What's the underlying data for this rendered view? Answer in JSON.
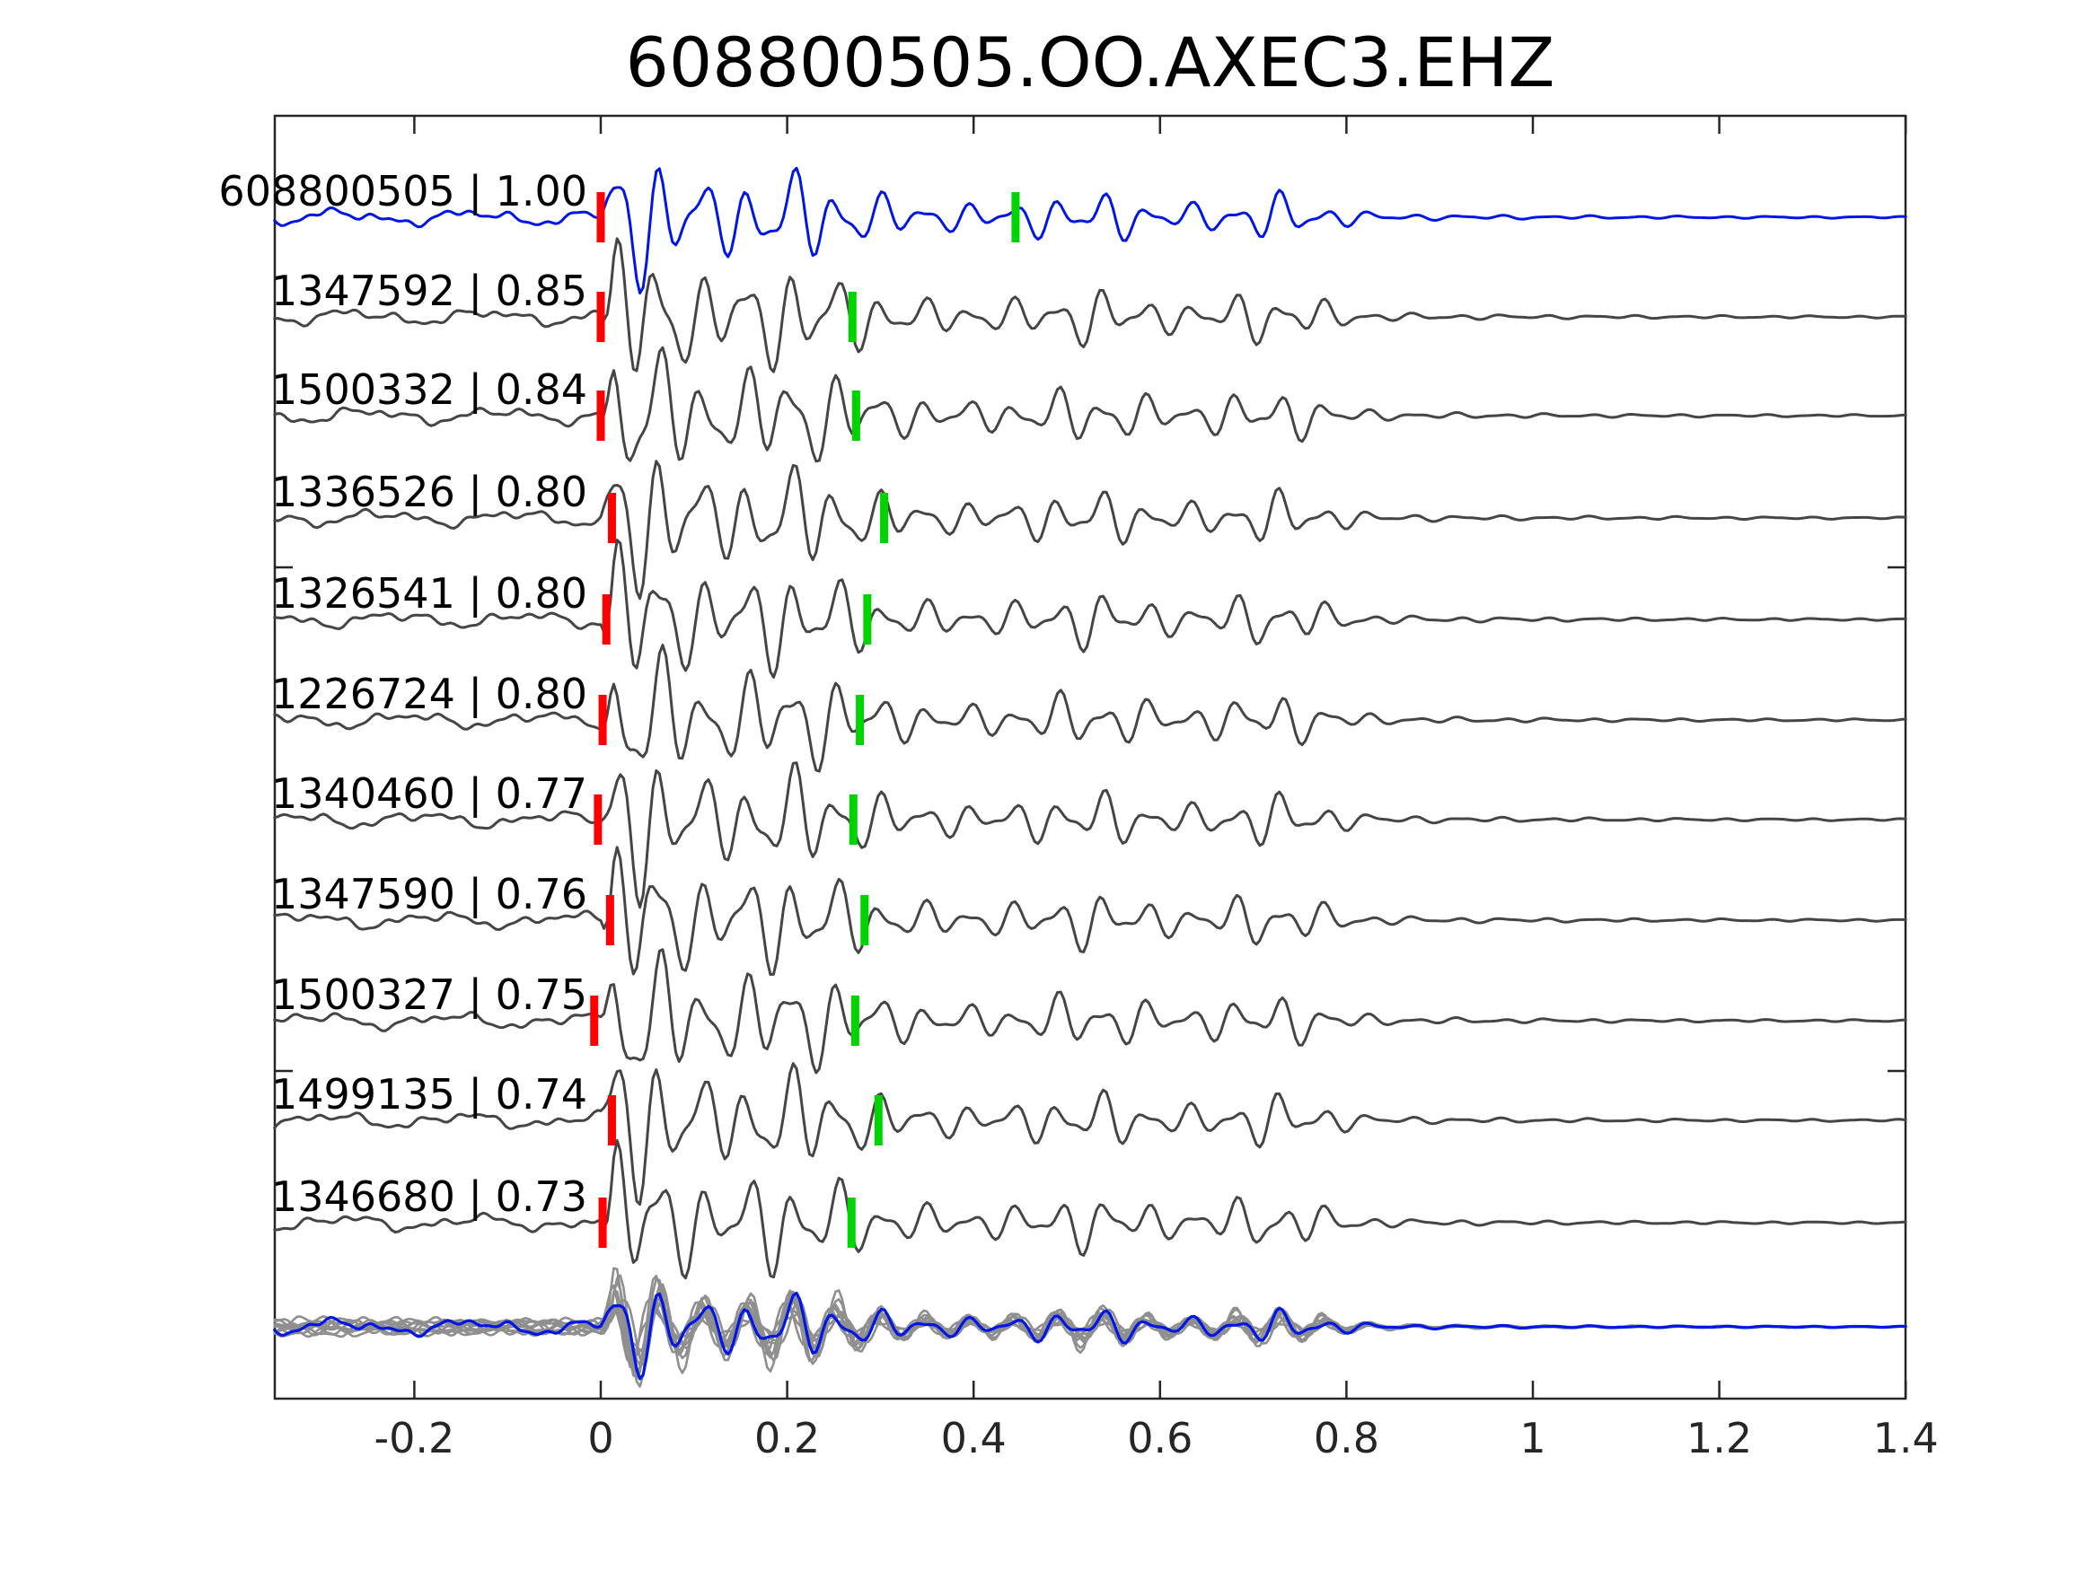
{
  "title": "608800505.OO.AXEC3.EHZ",
  "colors": {
    "template_blue": "#0016e8",
    "match_trace": "#454545",
    "stack_gray": "#8f8f8f",
    "marker_red": "#ff0000",
    "marker_green": "#00d400",
    "axis": "#262626",
    "text": "#000000"
  },
  "chart_data": {
    "type": "line",
    "title": "608800505.OO.AXEC3.EHZ",
    "x_axis": {
      "range": [
        -0.35,
        1.4
      ],
      "tick_values": [
        -0.2,
        0,
        0.2,
        0.4,
        0.6,
        0.8,
        1,
        1.2,
        1.4
      ],
      "tick_labels": [
        "-0.2",
        "0",
        "0.2",
        "0.4",
        "0.6",
        "0.8",
        "1",
        "1.2",
        "1.4"
      ]
    },
    "grid": false,
    "legend": false,
    "traces": [
      {
        "id": "608800505",
        "cc": "1.00",
        "label": "608800505 | 1.00",
        "is_template": true,
        "red_marker_x": 0.0,
        "green_marker_x": 0.445
      },
      {
        "id": "1347592",
        "cc": "0.85",
        "label": "1347592 | 0.85",
        "is_template": false,
        "red_marker_x": 0.0,
        "green_marker_x": 0.27
      },
      {
        "id": "1500332",
        "cc": "0.84",
        "label": "1500332 | 0.84",
        "is_template": false,
        "red_marker_x": 0.0,
        "green_marker_x": 0.274
      },
      {
        "id": "1336526",
        "cc": "0.80",
        "label": "1336526 | 0.80",
        "is_template": false,
        "red_marker_x": 0.012,
        "green_marker_x": 0.304
      },
      {
        "id": "1326541",
        "cc": "0.80",
        "label": "1326541 | 0.80",
        "is_template": false,
        "red_marker_x": 0.006,
        "green_marker_x": 0.286
      },
      {
        "id": "1226724",
        "cc": "0.80",
        "label": "1226724 | 0.80",
        "is_template": false,
        "red_marker_x": 0.002,
        "green_marker_x": 0.278
      },
      {
        "id": "1340460",
        "cc": "0.77",
        "label": "1340460 | 0.77",
        "is_template": false,
        "red_marker_x": -0.003,
        "green_marker_x": 0.271
      },
      {
        "id": "1347590",
        "cc": "0.76",
        "label": "1347590 | 0.76",
        "is_template": false,
        "red_marker_x": 0.01,
        "green_marker_x": 0.283
      },
      {
        "id": "1500327",
        "cc": "0.75",
        "label": "1500327 | 0.75",
        "is_template": false,
        "red_marker_x": -0.007,
        "green_marker_x": 0.273
      },
      {
        "id": "1499135",
        "cc": "0.74",
        "label": "1499135 | 0.74",
        "is_template": false,
        "red_marker_x": 0.012,
        "green_marker_x": 0.298
      },
      {
        "id": "1346680",
        "cc": "0.73",
        "label": "1346680 | 0.73",
        "is_template": false,
        "red_marker_x": 0.002,
        "green_marker_x": 0.269
      }
    ],
    "stack_panel": {
      "gray_trace_count": 10,
      "blue_template_overlaid": true
    },
    "waveform_character": {
      "pre_onset": "low-amplitude noise from x=-0.35 to 0",
      "onset_x": 0,
      "coda": "high-frequency oscillation decaying after x=0 with secondary bursts near x=0.21, 0.53 and 0.72, small ripple tail to x=1.4"
    }
  }
}
